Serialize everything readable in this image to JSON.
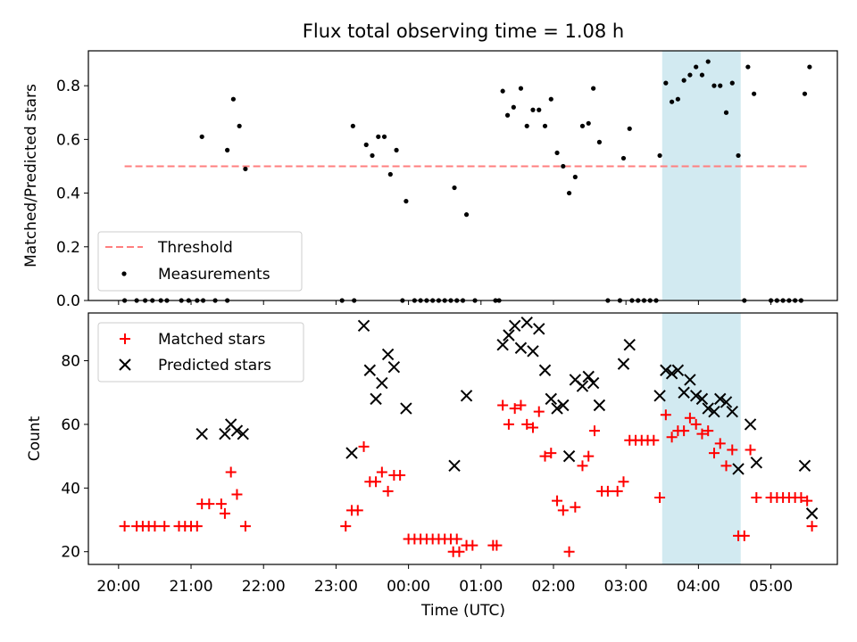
{
  "figure": {
    "title": "Flux total observing time = 1.08 h",
    "xlabel": "Time (UTC)"
  },
  "colors": {
    "threshold": "#ff7f7f",
    "measurement": "#000000",
    "matched": "#ff0000",
    "predicted": "#000000",
    "highlight": "#add8e6"
  },
  "chart_data": [
    {
      "type": "scatter",
      "ylabel": "Matched/Predicted stars",
      "xlim": [
        "19:35",
        "05:55"
      ],
      "ylim": [
        0,
        0.93
      ],
      "yticks": [
        0.0,
        0.2,
        0.4,
        0.6,
        0.8
      ],
      "yticklabels": [
        "0.0",
        "0.2",
        "0.4",
        "0.6",
        "0.8"
      ],
      "legend": {
        "placement": "lower-left",
        "entries": [
          "Threshold",
          "Measurements"
        ]
      },
      "highlight": {
        "x0": "03:30",
        "x1": "04:35"
      },
      "series": [
        {
          "name": "Threshold",
          "kind": "dashed-line",
          "x": [
            "20:05",
            "05:30"
          ],
          "y": [
            0.5,
            0.5
          ]
        },
        {
          "name": "Measurements",
          "kind": "dot",
          "points": [
            [
              "20:05",
              0
            ],
            [
              "20:15",
              0
            ],
            [
              "20:22",
              0
            ],
            [
              "20:28",
              0
            ],
            [
              "20:35",
              0
            ],
            [
              "20:40",
              0
            ],
            [
              "20:52",
              0
            ],
            [
              "20:58",
              0
            ],
            [
              "21:05",
              0
            ],
            [
              "21:10",
              0
            ],
            [
              "21:20",
              0
            ],
            [
              "21:30",
              0
            ],
            [
              "21:09",
              0.61
            ],
            [
              "21:30",
              0.56
            ],
            [
              "21:35",
              0.75
            ],
            [
              "21:40",
              0.65
            ],
            [
              "21:45",
              0.49
            ],
            [
              "23:05",
              0
            ],
            [
              "23:15",
              0
            ],
            [
              "23:14",
              0.65
            ],
            [
              "23:25",
              0.58
            ],
            [
              "23:30",
              0.54
            ],
            [
              "23:35",
              0.61
            ],
            [
              "23:40",
              0.61
            ],
            [
              "23:45",
              0.47
            ],
            [
              "23:50",
              0.56
            ],
            [
              "23:55",
              0
            ],
            [
              "23:58",
              0.37
            ],
            [
              "00:05",
              0
            ],
            [
              "00:10",
              0
            ],
            [
              "00:15",
              0
            ],
            [
              "00:20",
              0
            ],
            [
              "00:25",
              0
            ],
            [
              "00:30",
              0
            ],
            [
              "00:35",
              0
            ],
            [
              "00:40",
              0
            ],
            [
              "00:45",
              0
            ],
            [
              "00:38",
              0.42
            ],
            [
              "00:48",
              0.32
            ],
            [
              "00:55",
              0
            ],
            [
              "01:12",
              0
            ],
            [
              "01:15",
              0
            ],
            [
              "01:18",
              0.78
            ],
            [
              "01:22",
              0.69
            ],
            [
              "01:27",
              0.72
            ],
            [
              "01:33",
              0.79
            ],
            [
              "01:38",
              0.65
            ],
            [
              "01:43",
              0.71
            ],
            [
              "01:48",
              0.71
            ],
            [
              "01:53",
              0.65
            ],
            [
              "01:58",
              0.75
            ],
            [
              "02:03",
              0.55
            ],
            [
              "02:08",
              0.5
            ],
            [
              "02:13",
              0.4
            ],
            [
              "02:18",
              0.46
            ],
            [
              "02:24",
              0.65
            ],
            [
              "02:29",
              0.66
            ],
            [
              "02:33",
              0.79
            ],
            [
              "02:38",
              0.59
            ],
            [
              "02:45",
              0
            ],
            [
              "02:55",
              0
            ],
            [
              "02:58",
              0.53
            ],
            [
              "03:03",
              0.64
            ],
            [
              "03:05",
              0
            ],
            [
              "03:10",
              0
            ],
            [
              "03:15",
              0
            ],
            [
              "03:20",
              0
            ],
            [
              "03:25",
              0
            ],
            [
              "03:28",
              0.54
            ],
            [
              "03:33",
              0.81
            ],
            [
              "03:38",
              0.74
            ],
            [
              "03:43",
              0.75
            ],
            [
              "03:48",
              0.82
            ],
            [
              "03:53",
              0.84
            ],
            [
              "03:58",
              0.87
            ],
            [
              "04:03",
              0.84
            ],
            [
              "04:08",
              0.89
            ],
            [
              "04:13",
              0.8
            ],
            [
              "04:18",
              0.8
            ],
            [
              "04:23",
              0.7
            ],
            [
              "04:28",
              0.81
            ],
            [
              "04:33",
              0.54
            ],
            [
              "04:38",
              0
            ],
            [
              "04:41",
              0.87
            ],
            [
              "04:46",
              0.77
            ],
            [
              "05:00",
              0
            ],
            [
              "05:05",
              0
            ],
            [
              "05:10",
              0
            ],
            [
              "05:15",
              0
            ],
            [
              "05:20",
              0
            ],
            [
              "05:25",
              0
            ],
            [
              "05:28",
              0.77
            ],
            [
              "05:32",
              0.87
            ]
          ]
        }
      ]
    },
    {
      "type": "scatter",
      "ylabel": "Count",
      "xlim": [
        "19:35",
        "05:55"
      ],
      "ylim": [
        16,
        95
      ],
      "yticks": [
        20,
        40,
        60,
        80
      ],
      "yticklabels": [
        "20",
        "40",
        "60",
        "80"
      ],
      "xticks": [
        "20:00",
        "21:00",
        "22:00",
        "23:00",
        "00:00",
        "01:00",
        "02:00",
        "03:00",
        "04:00",
        "05:00"
      ],
      "xticklabels": [
        "20:00",
        "21:00",
        "22:00",
        "23:00",
        "00:00",
        "01:00",
        "02:00",
        "03:00",
        "04:00",
        "05:00"
      ],
      "legend": {
        "placement": "upper-left",
        "entries": [
          "Matched stars",
          "Predicted stars"
        ]
      },
      "highlight": {
        "x0": "03:30",
        "x1": "04:35"
      },
      "series": [
        {
          "name": "Matched stars",
          "kind": "plus",
          "points": [
            [
              "20:05",
              28
            ],
            [
              "20:15",
              28
            ],
            [
              "20:20",
              28
            ],
            [
              "20:25",
              28
            ],
            [
              "20:30",
              28
            ],
            [
              "20:38",
              28
            ],
            [
              "20:50",
              28
            ],
            [
              "20:55",
              28
            ],
            [
              "21:00",
              28
            ],
            [
              "21:05",
              28
            ],
            [
              "21:09",
              35
            ],
            [
              "21:15",
              35
            ],
            [
              "21:25",
              35
            ],
            [
              "21:28",
              32
            ],
            [
              "21:33",
              45
            ],
            [
              "21:38",
              38
            ],
            [
              "21:45",
              28
            ],
            [
              "23:08",
              28
            ],
            [
              "23:13",
              33
            ],
            [
              "23:18",
              33
            ],
            [
              "23:23",
              53
            ],
            [
              "23:28",
              42
            ],
            [
              "23:33",
              42
            ],
            [
              "23:38",
              45
            ],
            [
              "23:43",
              39
            ],
            [
              "23:48",
              44
            ],
            [
              "23:53",
              44
            ],
            [
              "00:00",
              24
            ],
            [
              "00:05",
              24
            ],
            [
              "00:10",
              24
            ],
            [
              "00:15",
              24
            ],
            [
              "00:20",
              24
            ],
            [
              "00:25",
              24
            ],
            [
              "00:30",
              24
            ],
            [
              "00:35",
              24
            ],
            [
              "00:40",
              24
            ],
            [
              "00:37",
              20
            ],
            [
              "00:42",
              20
            ],
            [
              "00:48",
              22
            ],
            [
              "00:53",
              22
            ],
            [
              "01:10",
              22
            ],
            [
              "01:13",
              22
            ],
            [
              "01:18",
              66
            ],
            [
              "01:23",
              60
            ],
            [
              "01:28",
              65
            ],
            [
              "01:33",
              66
            ],
            [
              "01:38",
              60
            ],
            [
              "01:43",
              59
            ],
            [
              "01:48",
              64
            ],
            [
              "01:53",
              50
            ],
            [
              "01:58",
              51
            ],
            [
              "02:03",
              36
            ],
            [
              "02:08",
              33
            ],
            [
              "02:13",
              20
            ],
            [
              "02:18",
              34
            ],
            [
              "02:24",
              47
            ],
            [
              "02:29",
              50
            ],
            [
              "02:34",
              58
            ],
            [
              "02:40",
              39
            ],
            [
              "02:45",
              39
            ],
            [
              "02:53",
              39
            ],
            [
              "02:58",
              42
            ],
            [
              "03:03",
              55
            ],
            [
              "03:08",
              55
            ],
            [
              "03:13",
              55
            ],
            [
              "03:18",
              55
            ],
            [
              "03:23",
              55
            ],
            [
              "03:28",
              37
            ],
            [
              "03:33",
              63
            ],
            [
              "03:38",
              56
            ],
            [
              "03:43",
              58
            ],
            [
              "03:48",
              58
            ],
            [
              "03:53",
              62
            ],
            [
              "03:58",
              60
            ],
            [
              "04:03",
              57
            ],
            [
              "04:08",
              58
            ],
            [
              "04:13",
              51
            ],
            [
              "04:18",
              54
            ],
            [
              "04:23",
              47
            ],
            [
              "04:28",
              52
            ],
            [
              "04:33",
              25
            ],
            [
              "04:38",
              25
            ],
            [
              "04:43",
              52
            ],
            [
              "04:48",
              37
            ],
            [
              "05:00",
              37
            ],
            [
              "05:05",
              37
            ],
            [
              "05:10",
              37
            ],
            [
              "05:15",
              37
            ],
            [
              "05:20",
              37
            ],
            [
              "05:25",
              37
            ],
            [
              "05:30",
              36
            ],
            [
              "05:34",
              28
            ]
          ]
        },
        {
          "name": "Predicted stars",
          "kind": "cross",
          "points": [
            [
              "21:09",
              57
            ],
            [
              "21:28",
              57
            ],
            [
              "21:33",
              60
            ],
            [
              "21:38",
              58
            ],
            [
              "21:43",
              57
            ],
            [
              "23:13",
              51
            ],
            [
              "23:23",
              91
            ],
            [
              "23:28",
              77
            ],
            [
              "23:33",
              68
            ],
            [
              "23:38",
              73
            ],
            [
              "23:43",
              82
            ],
            [
              "23:48",
              78
            ],
            [
              "23:58",
              65
            ],
            [
              "00:38",
              47
            ],
            [
              "00:48",
              69
            ],
            [
              "01:18",
              85
            ],
            [
              "01:23",
              88
            ],
            [
              "01:28",
              91
            ],
            [
              "01:33",
              84
            ],
            [
              "01:38",
              92
            ],
            [
              "01:43",
              83
            ],
            [
              "01:48",
              90
            ],
            [
              "01:53",
              77
            ],
            [
              "01:58",
              68
            ],
            [
              "02:03",
              65
            ],
            [
              "02:08",
              66
            ],
            [
              "02:13",
              50
            ],
            [
              "02:18",
              74
            ],
            [
              "02:24",
              72
            ],
            [
              "02:29",
              75
            ],
            [
              "02:33",
              73
            ],
            [
              "02:38",
              66
            ],
            [
              "02:58",
              79
            ],
            [
              "03:03",
              85
            ],
            [
              "03:28",
              69
            ],
            [
              "03:33",
              77
            ],
            [
              "03:38",
              76
            ],
            [
              "03:43",
              77
            ],
            [
              "03:48",
              70
            ],
            [
              "03:53",
              74
            ],
            [
              "03:58",
              69
            ],
            [
              "04:03",
              68
            ],
            [
              "04:08",
              65
            ],
            [
              "04:13",
              64
            ],
            [
              "04:18",
              68
            ],
            [
              "04:23",
              67
            ],
            [
              "04:28",
              64
            ],
            [
              "04:33",
              46
            ],
            [
              "04:43",
              60
            ],
            [
              "04:48",
              48
            ],
            [
              "05:28",
              47
            ],
            [
              "05:34",
              32
            ]
          ]
        }
      ]
    }
  ]
}
